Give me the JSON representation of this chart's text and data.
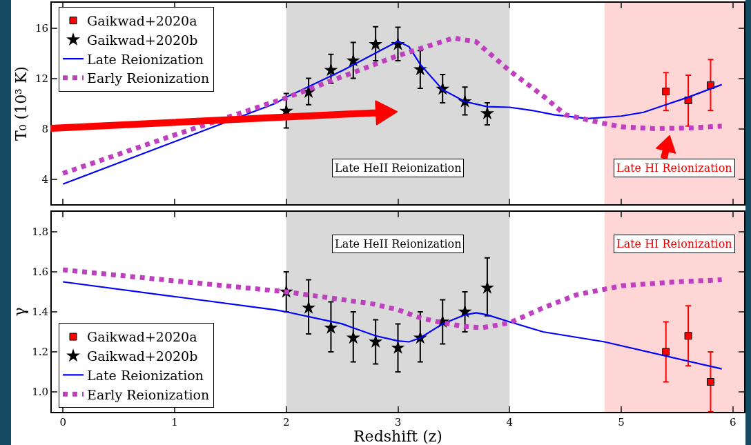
{
  "chart_data": [
    {
      "type": "line",
      "ylabel": "T₀ (10³ K)",
      "xlim": [
        -0.1,
        6.1
      ],
      "xticks": [
        0,
        1,
        2,
        3,
        4,
        5,
        6
      ],
      "ylim": [
        2,
        18
      ],
      "yticks": [
        4,
        8,
        12,
        16
      ],
      "tick_labels": "y",
      "grid": false,
      "legend": "top left",
      "bands": [
        {
          "axis": "x",
          "from": 2,
          "to": 4,
          "label": "Late HeII Reionization",
          "color": "#d9d9d9"
        },
        {
          "axis": "x",
          "from": 4.85,
          "to": 6.1,
          "label": "Late HI Reionization",
          "color": "#ffd6d6"
        }
      ],
      "series": [
        {
          "name": "Gaikwad+2020a",
          "type": "scatter",
          "marker": "square",
          "color": "#ff0000",
          "x": [
            5.4,
            5.6,
            5.8
          ],
          "values": [
            10.95,
            10.25,
            11.45
          ],
          "errors": [
            [
              9.45,
              12.45
            ],
            [
              8.2,
              12.25
            ],
            [
              9.45,
              13.5
            ]
          ]
        },
        {
          "name": "Gaikwad+2020b",
          "type": "scatter",
          "marker": "star",
          "color": "#000000",
          "x": [
            2.0,
            2.2,
            2.4,
            2.6,
            2.8,
            3.0,
            3.2,
            3.4,
            3.6,
            3.8
          ],
          "values": [
            9.4,
            10.9,
            12.65,
            13.4,
            14.7,
            14.7,
            12.7,
            11.15,
            10.15,
            9.2
          ],
          "errors": [
            [
              8.05,
              10.8
            ],
            [
              9.9,
              12.0
            ],
            [
              11.6,
              13.9
            ],
            [
              12.0,
              14.85
            ],
            [
              13.4,
              16.1
            ],
            [
              13.4,
              16.05
            ],
            [
              11.2,
              14.2
            ],
            [
              10.05,
              12.3
            ],
            [
              9.1,
              11.3
            ],
            [
              8.3,
              10.05
            ]
          ]
        },
        {
          "name": "Late Reionization",
          "marker": "none",
          "line_style": "solid",
          "color": "#0000ff",
          "x": [
            0,
            1.9,
            2.0,
            2.5,
            3.0,
            3.1,
            3.2,
            3.4,
            3.6,
            3.8,
            4.0,
            4.2,
            4.4,
            4.7,
            5.0,
            5.2,
            5.4,
            5.6,
            5.9
          ],
          "values": [
            3.6,
            10.0,
            10.5,
            12.6,
            14.95,
            14.5,
            13.1,
            11.1,
            10.15,
            9.75,
            9.7,
            9.45,
            9.1,
            8.8,
            9.0,
            9.3,
            9.9,
            10.5,
            11.5
          ]
        },
        {
          "name": "Early Reionization",
          "marker": "none",
          "line_style": "dotted",
          "color": "#bf40bf",
          "x": [
            0,
            1.0,
            2.0,
            3.0,
            3.5,
            3.7,
            4.0,
            4.3,
            4.5,
            4.8,
            5.0,
            5.3,
            5.6,
            5.9
          ],
          "values": [
            4.45,
            7.5,
            10.45,
            13.8,
            15.2,
            14.9,
            12.6,
            10.6,
            9.1,
            8.5,
            8.15,
            8.0,
            8.05,
            8.2
          ]
        }
      ]
    },
    {
      "type": "line",
      "xlabel": "Redshift (z)",
      "ylabel": "γ",
      "xlim": [
        -0.1,
        6.1
      ],
      "xticks": [
        0,
        1,
        2,
        3,
        4,
        5,
        6
      ],
      "ylim": [
        0.9,
        1.9
      ],
      "yticks": [
        {
          "value": 1,
          "label": "1.0"
        },
        1.2,
        1.4,
        1.6,
        1.8
      ],
      "grid": false,
      "legend": "bottom left",
      "bands": [
        {
          "axis": "x",
          "from": 2,
          "to": 4,
          "label": "Late HeII Reionization",
          "color": "#d9d9d9"
        },
        {
          "axis": "x",
          "from": 4.85,
          "to": 6.1,
          "label": "Late HI Reionization",
          "color": "#ffd6d6"
        }
      ],
      "series": [
        {
          "name": "Gaikwad+2020a",
          "type": "scatter",
          "marker": "square",
          "color": "#ff0000",
          "x": [
            5.4,
            5.6,
            5.8
          ],
          "values": [
            1.2,
            1.28,
            1.05
          ],
          "errors": [
            [
              1.05,
              1.35
            ],
            [
              1.13,
              1.43
            ],
            [
              0.9,
              1.2
            ]
          ]
        },
        {
          "name": "Gaikwad+2020b",
          "type": "scatter",
          "marker": "star",
          "color": "#000000",
          "x": [
            2.0,
            2.2,
            2.4,
            2.6,
            2.8,
            3.0,
            3.2,
            3.4,
            3.6,
            3.8
          ],
          "values": [
            1.5,
            1.42,
            1.32,
            1.27,
            1.25,
            1.22,
            1.27,
            1.35,
            1.4,
            1.52
          ],
          "errors": [
            [
              1.4,
              1.6
            ],
            [
              1.29,
              1.56
            ],
            [
              1.2,
              1.45
            ],
            [
              1.15,
              1.4
            ],
            [
              1.14,
              1.36
            ],
            [
              1.1,
              1.34
            ],
            [
              1.15,
              1.4
            ],
            [
              1.24,
              1.46
            ],
            [
              1.3,
              1.5
            ],
            [
              1.38,
              1.67
            ]
          ]
        },
        {
          "name": "Late Reionization",
          "marker": "none",
          "line_style": "solid",
          "color": "#0000ff",
          "x": [
            0,
            1.9,
            2.0,
            2.5,
            2.8,
            3.0,
            3.1,
            3.2,
            3.4,
            3.6,
            3.7,
            3.8,
            4.0,
            4.3,
            4.85,
            5.9
          ],
          "values": [
            1.55,
            1.41,
            1.4,
            1.34,
            1.28,
            1.255,
            1.25,
            1.27,
            1.34,
            1.385,
            1.395,
            1.385,
            1.35,
            1.3,
            1.25,
            1.115
          ]
        },
        {
          "name": "Early Reionization",
          "marker": "none",
          "line_style": "dotted",
          "color": "#bf40bf",
          "x": [
            0,
            2.0,
            2.77,
            3.0,
            3.2,
            3.4,
            3.6,
            3.75,
            4.0,
            4.3,
            4.6,
            5.0,
            5.5,
            5.9
          ],
          "values": [
            1.61,
            1.5,
            1.44,
            1.41,
            1.37,
            1.345,
            1.327,
            1.32,
            1.345,
            1.42,
            1.485,
            1.53,
            1.55,
            1.56
          ]
        }
      ]
    }
  ]
}
